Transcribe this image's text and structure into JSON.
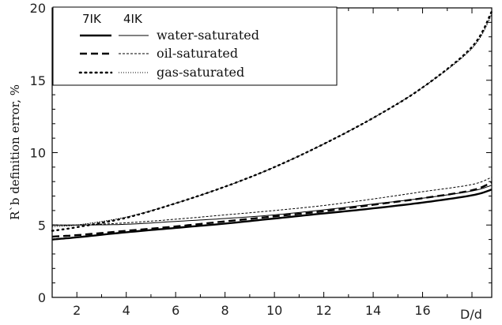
{
  "chart_data": {
    "type": "line",
    "title": "",
    "ylabel": "R`b definition error, %",
    "xlabel": "D/d",
    "xlim": [
      1,
      18.8
    ],
    "ylim": [
      0,
      20
    ],
    "x_ticks": [
      2,
      4,
      6,
      8,
      10,
      12,
      14,
      16
    ],
    "x_tick_labels": [
      "2",
      "4",
      "6",
      "8",
      "10",
      "12",
      "14",
      "16"
    ],
    "y_ticks": [
      0,
      5,
      10,
      15,
      20
    ],
    "y_tick_labels": [
      "0",
      "5",
      "10",
      "15",
      "20"
    ],
    "grid": false,
    "legend": {
      "placement": "top-left",
      "column_headers": [
        "7IK",
        "4IK"
      ],
      "rows": [
        "water-saturated",
        "oil-saturated",
        "gas-saturated"
      ]
    },
    "x": [
      1,
      2,
      4,
      6,
      8,
      10,
      12,
      14,
      16,
      18,
      18.8
    ],
    "series": [
      {
        "tool": "7IK",
        "fluid": "water-saturated",
        "style": "solid",
        "weight": "thick",
        "values": [
          4.0,
          4.15,
          4.5,
          4.8,
          5.1,
          5.45,
          5.8,
          6.15,
          6.55,
          7.05,
          7.45
        ]
      },
      {
        "tool": "4IK",
        "fluid": "water-saturated",
        "style": "solid",
        "weight": "thin",
        "values": [
          5.0,
          5.0,
          5.05,
          5.25,
          5.45,
          5.7,
          6.05,
          6.45,
          6.85,
          7.35,
          7.75
        ]
      },
      {
        "tool": "7IK",
        "fluid": "oil-saturated",
        "style": "dashed",
        "weight": "thick",
        "values": [
          4.2,
          4.3,
          4.6,
          4.9,
          5.25,
          5.6,
          5.95,
          6.4,
          6.85,
          7.4,
          7.95
        ]
      },
      {
        "tool": "4IK",
        "fluid": "oil-saturated",
        "style": "dashed",
        "weight": "thin",
        "values": [
          5.0,
          5.0,
          5.15,
          5.4,
          5.7,
          6.0,
          6.35,
          6.8,
          7.3,
          7.8,
          8.3
        ]
      },
      {
        "tool": "7IK",
        "fluid": "gas-saturated",
        "style": "dotted",
        "weight": "thick",
        "values": [
          4.6,
          4.85,
          5.5,
          6.5,
          7.65,
          9.0,
          10.6,
          12.4,
          14.5,
          17.3,
          19.75
        ]
      },
      {
        "tool": "4IK",
        "fluid": "gas-saturated",
        "style": "dotted",
        "weight": "thin",
        "values": [
          4.9,
          5.0,
          5.55,
          6.5,
          7.65,
          9.0,
          10.6,
          12.4,
          14.5,
          17.2,
          19.55
        ]
      }
    ],
    "colors": {
      "line": "#000000",
      "axis": "#000000",
      "background": "#ffffff"
    }
  }
}
